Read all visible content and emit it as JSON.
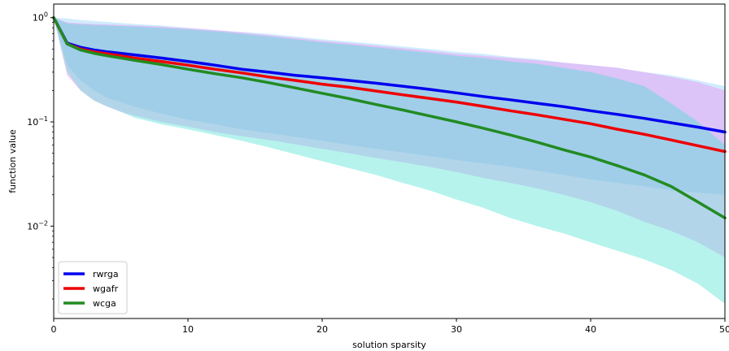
{
  "chart_data": {
    "type": "line",
    "xlabel": "solution sparsity",
    "ylabel": "function value",
    "yscale": "log",
    "xlim": [
      0,
      50
    ],
    "ylim": [
      0.0013,
      1.35
    ],
    "grid": false,
    "legend_position": "lower-left",
    "x_ticks": [
      0,
      10,
      20,
      30,
      40,
      50
    ],
    "y_ticks": [
      {
        "value": 1,
        "base": "10",
        "exp": "0"
      },
      {
        "value": 0.1,
        "base": "10",
        "exp": "−1"
      },
      {
        "value": 0.01,
        "base": "10",
        "exp": "−2"
      }
    ],
    "x": [
      0,
      1,
      2,
      3,
      4,
      5,
      6,
      8,
      10,
      12,
      14,
      16,
      18,
      20,
      22,
      24,
      26,
      28,
      30,
      32,
      34,
      36,
      38,
      40,
      42,
      44,
      46,
      48,
      50
    ],
    "series": [
      {
        "name": "rwrga",
        "color": "#0000ee",
        "values": [
          1.0,
          0.57,
          0.52,
          0.49,
          0.47,
          0.455,
          0.44,
          0.41,
          0.38,
          0.35,
          0.32,
          0.3,
          0.28,
          0.265,
          0.25,
          0.235,
          0.22,
          0.205,
          0.19,
          0.175,
          0.163,
          0.151,
          0.14,
          0.128,
          0.118,
          0.108,
          0.098,
          0.089,
          0.08
        ],
        "band_color": "#87cefa",
        "band_upper": [
          1.0,
          0.98,
          0.95,
          0.93,
          0.91,
          0.89,
          0.87,
          0.84,
          0.8,
          0.76,
          0.73,
          0.7,
          0.66,
          0.62,
          0.59,
          0.56,
          0.53,
          0.5,
          0.47,
          0.45,
          0.42,
          0.4,
          0.37,
          0.35,
          0.33,
          0.3,
          0.28,
          0.25,
          0.22
        ],
        "band_lower": [
          1.0,
          0.35,
          0.25,
          0.2,
          0.17,
          0.155,
          0.14,
          0.12,
          0.105,
          0.095,
          0.085,
          0.078,
          0.072,
          0.066,
          0.06,
          0.055,
          0.051,
          0.047,
          0.043,
          0.04,
          0.037,
          0.034,
          0.031,
          0.028,
          0.026,
          0.024,
          0.022,
          0.021,
          0.02
        ]
      },
      {
        "name": "wgafr",
        "color": "#ee0000",
        "values": [
          1.0,
          0.56,
          0.5,
          0.47,
          0.45,
          0.43,
          0.41,
          0.38,
          0.35,
          0.32,
          0.295,
          0.27,
          0.25,
          0.23,
          0.215,
          0.198,
          0.182,
          0.168,
          0.155,
          0.141,
          0.128,
          0.117,
          0.106,
          0.096,
          0.085,
          0.076,
          0.067,
          0.059,
          0.052
        ],
        "band_color": "#ee82ee",
        "band_upper": [
          1.0,
          0.9,
          0.88,
          0.87,
          0.86,
          0.85,
          0.84,
          0.82,
          0.79,
          0.76,
          0.72,
          0.68,
          0.64,
          0.6,
          0.57,
          0.54,
          0.51,
          0.48,
          0.45,
          0.43,
          0.41,
          0.39,
          0.37,
          0.35,
          0.33,
          0.3,
          0.27,
          0.24,
          0.2
        ],
        "band_lower": [
          1.0,
          0.28,
          0.2,
          0.16,
          0.14,
          0.125,
          0.115,
          0.1,
          0.09,
          0.08,
          0.073,
          0.067,
          0.061,
          0.055,
          0.05,
          0.045,
          0.041,
          0.037,
          0.033,
          0.029,
          0.026,
          0.023,
          0.02,
          0.017,
          0.014,
          0.011,
          0.009,
          0.007,
          0.005
        ]
      },
      {
        "name": "wcga",
        "color": "#228b22",
        "values": [
          1.0,
          0.56,
          0.49,
          0.455,
          0.43,
          0.41,
          0.39,
          0.355,
          0.32,
          0.29,
          0.265,
          0.238,
          0.212,
          0.188,
          0.167,
          0.147,
          0.13,
          0.114,
          0.1,
          0.087,
          0.075,
          0.064,
          0.054,
          0.046,
          0.038,
          0.031,
          0.024,
          0.017,
          0.012
        ],
        "band_color": "#40e0d0",
        "band_upper": [
          1.0,
          0.88,
          0.86,
          0.85,
          0.84,
          0.83,
          0.82,
          0.8,
          0.77,
          0.74,
          0.7,
          0.66,
          0.62,
          0.58,
          0.55,
          0.52,
          0.49,
          0.46,
          0.43,
          0.41,
          0.38,
          0.36,
          0.33,
          0.3,
          0.26,
          0.22,
          0.15,
          0.1,
          0.06
        ],
        "band_lower": [
          1.0,
          0.3,
          0.2,
          0.16,
          0.14,
          0.125,
          0.11,
          0.095,
          0.085,
          0.075,
          0.066,
          0.057,
          0.049,
          0.042,
          0.036,
          0.031,
          0.026,
          0.022,
          0.018,
          0.015,
          0.012,
          0.01,
          0.0085,
          0.007,
          0.0058,
          0.0048,
          0.0038,
          0.0028,
          0.0018
        ]
      }
    ]
  }
}
